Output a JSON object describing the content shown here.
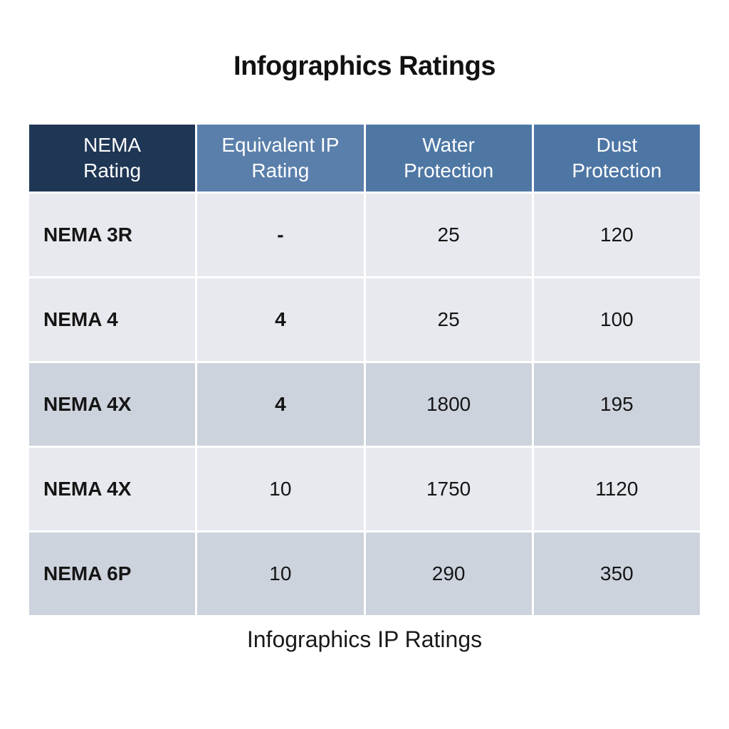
{
  "title": "Infographics Ratings",
  "caption": "Infographics IP Ratings",
  "chart_data": {
    "type": "table",
    "headers": [
      [
        "NEMA",
        "Rating"
      ],
      [
        "Equivalent IP",
        "Rating"
      ],
      [
        "Water",
        "Protection"
      ],
      [
        "Dust",
        "Protection"
      ]
    ],
    "rows": [
      {
        "cells": [
          "NEMA 3R",
          "-",
          "25",
          "120"
        ],
        "shade": "light"
      },
      {
        "cells": [
          "NEMA 4",
          "4",
          "25",
          "100"
        ],
        "shade": "light"
      },
      {
        "cells": [
          "NEMA 4X",
          "4",
          "1800",
          "195"
        ],
        "shade": "dark"
      },
      {
        "cells": [
          "NEMA 4X",
          "10",
          "1750",
          "1120"
        ],
        "shade": "light"
      },
      {
        "cells": [
          "NEMA 6P",
          "10",
          "290",
          "350"
        ],
        "shade": "dark"
      }
    ]
  },
  "colors": {
    "header_dark": "#1f3655",
    "header_blue": "#4e77a4",
    "row_light": "#e7e9ee",
    "row_dark": "#cdd3dd"
  }
}
